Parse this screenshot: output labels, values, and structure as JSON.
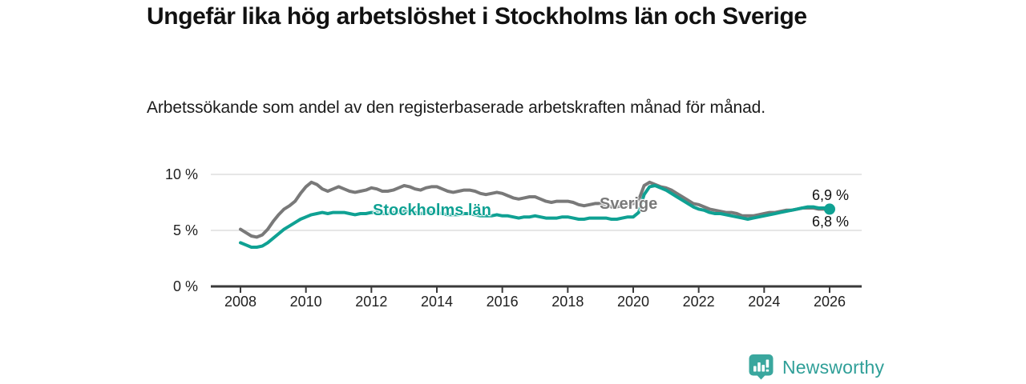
{
  "chart_data": {
    "type": "line",
    "title": "Ungefär lika hög arbetslöshet i Stockholms län och Sverige",
    "subtitle": "Arbetssökande som andel av den registerbaserade arbetskraften månad för månad.",
    "x_start_year": 2008,
    "x_step_months": 2,
    "xlim": [
      2008,
      2026.2
    ],
    "ylim": [
      0,
      10
    ],
    "grid": "horizontal",
    "grid_color": "#dedede",
    "axis_color": "#3a3a3a",
    "x_ticks": [
      "2008",
      "2010",
      "2012",
      "2014",
      "2016",
      "2018",
      "2020",
      "2022",
      "2024",
      "2026"
    ],
    "y_ticks": [
      {
        "value": 0,
        "label": "0 %"
      },
      {
        "value": 5,
        "label": "5 %"
      },
      {
        "value": 10,
        "label": "10 %"
      }
    ],
    "series": [
      {
        "name": "Sverige",
        "color": "#797979",
        "values": [
          5.1,
          4.8,
          4.5,
          4.4,
          4.6,
          5.1,
          5.8,
          6.4,
          6.9,
          7.2,
          7.6,
          8.3,
          8.9,
          9.3,
          9.1,
          8.7,
          8.5,
          8.7,
          8.9,
          8.7,
          8.5,
          8.4,
          8.5,
          8.6,
          8.8,
          8.7,
          8.5,
          8.5,
          8.6,
          8.8,
          9.0,
          8.9,
          8.7,
          8.6,
          8.8,
          8.9,
          8.9,
          8.7,
          8.5,
          8.4,
          8.5,
          8.6,
          8.6,
          8.5,
          8.3,
          8.2,
          8.3,
          8.4,
          8.3,
          8.1,
          7.9,
          7.8,
          7.9,
          8.0,
          8.0,
          7.8,
          7.6,
          7.5,
          7.6,
          7.6,
          7.6,
          7.5,
          7.3,
          7.2,
          7.3,
          7.4,
          7.4,
          7.3,
          7.1,
          7.1,
          7.2,
          7.3,
          7.4,
          7.7,
          9.0,
          9.3,
          9.1,
          8.9,
          8.8,
          8.6,
          8.3,
          8.0,
          7.7,
          7.4,
          7.3,
          7.1,
          6.9,
          6.8,
          6.7,
          6.6,
          6.6,
          6.5,
          6.3,
          6.3,
          6.3,
          6.4,
          6.5,
          6.6,
          6.6,
          6.7,
          6.8,
          6.8,
          6.9,
          7.0,
          7.0,
          7.0,
          6.9,
          6.9,
          6.8
        ]
      },
      {
        "name": "Stockholms län",
        "color": "#0fa193",
        "end_dot": true,
        "values": [
          3.9,
          3.7,
          3.5,
          3.5,
          3.6,
          3.9,
          4.3,
          4.7,
          5.1,
          5.4,
          5.7,
          6.0,
          6.2,
          6.4,
          6.5,
          6.6,
          6.5,
          6.6,
          6.6,
          6.6,
          6.5,
          6.4,
          6.5,
          6.5,
          6.6,
          6.6,
          6.5,
          6.5,
          6.6,
          6.6,
          6.7,
          6.6,
          6.6,
          6.5,
          6.6,
          6.6,
          6.6,
          6.5,
          6.4,
          6.4,
          6.4,
          6.5,
          6.5,
          6.4,
          6.3,
          6.3,
          6.3,
          6.4,
          6.3,
          6.3,
          6.2,
          6.1,
          6.2,
          6.2,
          6.3,
          6.2,
          6.1,
          6.1,
          6.1,
          6.2,
          6.2,
          6.1,
          6.0,
          6.0,
          6.1,
          6.1,
          6.1,
          6.1,
          6.0,
          6.0,
          6.1,
          6.2,
          6.2,
          6.6,
          8.2,
          8.9,
          9.0,
          8.8,
          8.6,
          8.3,
          8.0,
          7.7,
          7.4,
          7.1,
          6.9,
          6.8,
          6.6,
          6.5,
          6.5,
          6.4,
          6.3,
          6.2,
          6.1,
          6.0,
          6.1,
          6.2,
          6.3,
          6.4,
          6.5,
          6.6,
          6.7,
          6.8,
          6.9,
          7.0,
          7.1,
          7.1,
          7.0,
          7.0,
          6.9
        ]
      }
    ],
    "end_labels": [
      {
        "series": "Stockholms län",
        "text": "6,9 %"
      },
      {
        "series": "Sverige",
        "text": "6,8 %"
      }
    ],
    "legend_position": "inline-labels"
  },
  "footer": {
    "brand": "Newsworthy",
    "brand_color": "#2f9f98",
    "icon_color": "#3aa79e",
    "icon": "newsworthy-bar-chart-bubble-icon"
  }
}
